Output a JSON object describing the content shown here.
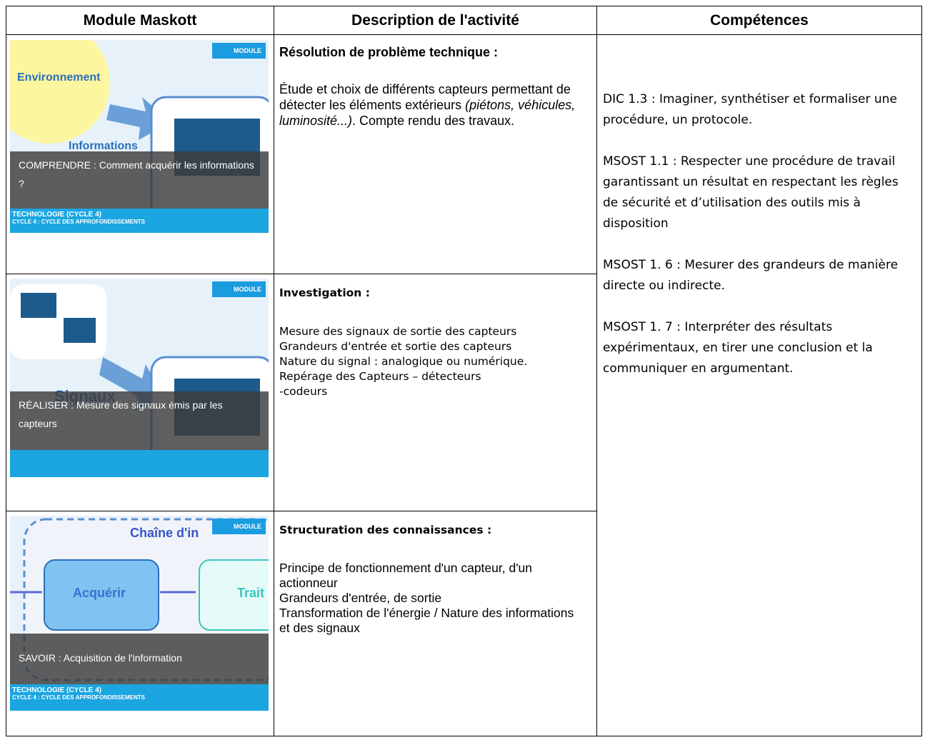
{
  "table": {
    "headers": [
      "Module Maskott",
      "Description de l'activité",
      "Compétences"
    ],
    "rows": [
      {
        "module": {
          "image_labels": [
            "Environnement",
            "Informations"
          ],
          "badge": "MODULE",
          "caption": "COMPRENDRE : Comment acquérir les informations ?",
          "footer": [
            "TECHNOLOGIE (CYCLE 4)",
            "CYCLE 4 : CYCLE DES APPROFONDISSEMENTS"
          ]
        },
        "description": {
          "heading": "Résolution de problème technique :",
          "body": [
            "Étude et choix de différents capteurs permettant de détecter les éléments extérieurs",
            "(piétons, véhicules, luminosité...)",
            ". Compte rendu des travaux."
          ]
        }
      },
      {
        "module": {
          "image_labels": [
            "Signaux"
          ],
          "badge": "MODULE",
          "caption": "RÉALISER : Mesure des signaux émis par les capteurs"
        },
        "description": {
          "heading": "Investigation :",
          "body": [
            "Mesure des signaux de sortie des capteurs",
            "Grandeurs d'entrée et sortie des capteurs",
            "Nature du signal : analogique ou numérique.",
            "Repérage des Capteurs – détecteurs",
            "-codeurs"
          ]
        }
      },
      {
        "module": {
          "image_labels": [
            "Chaîne d'in",
            "Acquérir",
            "Trait"
          ],
          "badge": "MODULE",
          "caption": "SAVOIR : Acquisition de l'information",
          "footer": [
            "TECHNOLOGIE (CYCLE 4)",
            "CYCLE 4 : CYCLE DES APPROFONDISSEMENTS"
          ]
        },
        "description": {
          "heading": "Structuration des connaissances :",
          "body": [
            "Principe de fonctionnement d'un capteur, d'un actionneur",
            "Grandeurs d'entrée, de sortie",
            "Transformation de l'énergie / Nature des informations et des signaux"
          ]
        }
      }
    ],
    "competences": [
      "DIC 1.3 : Imaginer, synthétiser et formaliser une procédure, un protocole.",
      "MSOST 1.1 : Respecter une procédure de travail garantissant un résultat en respectant les règles de sécurité et d’utilisation des outils mis à disposition",
      "MSOST 1. 6 : Mesurer des grandeurs de manière directe ou indirecte.",
      "MSOST 1. 7 : Interpréter des résultats expérimentaux, en tirer une conclusion et la communiquer en argumentant."
    ]
  }
}
